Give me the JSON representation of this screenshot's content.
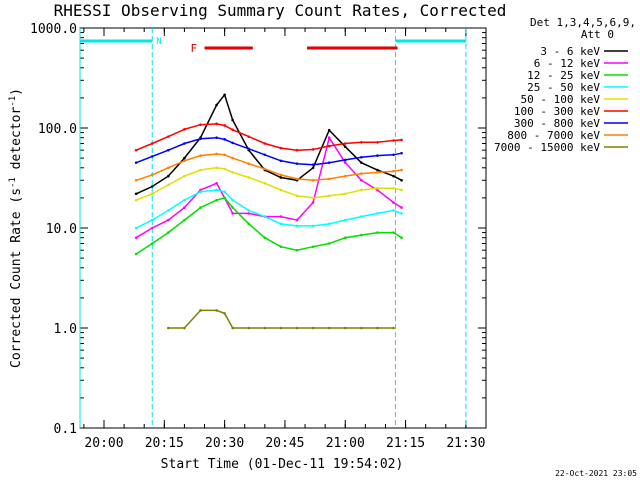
{
  "chart_data": {
    "type": "line",
    "title": "RHESSI Observing Summary Count Rates, Corrected",
    "xlabel": "Start Time (01-Dec-11 19:54:02)",
    "ylabel": "Corrected Count Rate (s",
    "ylabel_sup": "-1",
    "ylabel_tail": " detector",
    "ylabel_sup2": "-1",
    "ylabel_end": ")",
    "y_scale": "log",
    "ylim": [
      0.1,
      1000
    ],
    "y_ticks": [
      {
        "v": 1000,
        "label": "1000.0"
      },
      {
        "v": 100,
        "label": "100.0"
      },
      {
        "v": 10,
        "label": "10.0"
      },
      {
        "v": 1,
        "label": "1.0"
      },
      {
        "v": 0.1,
        "label": "0.1"
      }
    ],
    "xlim": [
      "19:54:02",
      "21:35:00"
    ],
    "x_ticks": [
      "20:00",
      "20:15",
      "20:30",
      "20:45",
      "21:00",
      "21:15",
      "21:30"
    ],
    "detector_info": [
      "Det 1,3,4,5,6,9,",
      "Att 0"
    ],
    "legend_placement": "right",
    "timestamp": "22-Oct-2021 23:05",
    "night_marker_label": "N",
    "flare_marker_label": "F",
    "night_intervals": [
      [
        "19:54:02",
        "20:12:00"
      ],
      [
        "21:12:30",
        "21:30:00"
      ]
    ],
    "flare_intervals": [
      [
        "20:25:00",
        "20:37:00"
      ],
      [
        "20:50:30",
        "21:13:00"
      ]
    ],
    "bar_colors": {
      "night": "#00e5ee",
      "flare": "#e00000"
    },
    "x": [
      "20:08",
      "20:12",
      "20:16",
      "20:20",
      "20:24",
      "20:28",
      "20:30",
      "20:32",
      "20:36",
      "20:40",
      "20:44",
      "20:48",
      "20:52",
      "20:56",
      "21:00",
      "21:04",
      "21:08",
      "21:12",
      "21:14"
    ],
    "series": [
      {
        "name": "3 - 6 keV",
        "color": "#000000",
        "values": [
          22,
          26,
          33,
          50,
          80,
          170,
          215,
          120,
          60,
          38,
          32,
          30,
          40,
          95,
          65,
          45,
          38,
          33,
          30
        ]
      },
      {
        "name": "6 - 12 keV",
        "color": "#ff00ff",
        "values": [
          8,
          10,
          12,
          16,
          24,
          28,
          20,
          14,
          14,
          13,
          13,
          12,
          18,
          80,
          45,
          30,
          24,
          18,
          16
        ]
      },
      {
        "name": "12 - 25 keV",
        "color": "#00e000",
        "values": [
          5.5,
          7,
          9,
          12,
          16,
          19,
          20,
          16,
          11,
          8,
          6.5,
          6,
          6.5,
          7,
          8,
          8.5,
          9,
          9,
          8
        ]
      },
      {
        "name": "25 - 50 keV",
        "color": "#00ffff",
        "values": [
          10,
          12,
          15,
          19,
          23,
          24,
          23,
          19,
          15,
          13,
          11,
          10.5,
          10.5,
          11,
          12,
          13,
          14,
          15,
          14
        ]
      },
      {
        "name": "50 - 100 keV",
        "color": "#e0e000",
        "values": [
          19,
          22,
          27,
          33,
          38,
          40,
          39,
          36,
          32,
          28,
          24,
          21,
          20,
          21,
          22,
          24,
          25,
          25,
          24
        ]
      },
      {
        "name": "100 - 300 keV",
        "color": "#ff0000",
        "values": [
          60,
          70,
          82,
          97,
          108,
          110,
          106,
          96,
          82,
          70,
          63,
          60,
          61,
          66,
          70,
          72,
          72,
          75,
          76
        ]
      },
      {
        "name": "300 - 800 keV",
        "color": "#0000ff",
        "values": [
          45,
          52,
          60,
          70,
          78,
          80,
          77,
          71,
          62,
          54,
          47,
          44,
          43,
          45,
          48,
          51,
          53,
          54,
          56
        ]
      },
      {
        "name": "800 - 7000 keV",
        "color": "#ff8000",
        "values": [
          30,
          34,
          40,
          47,
          53,
          55,
          54,
          50,
          44,
          39,
          34,
          31,
          30,
          31,
          33,
          35,
          36,
          37,
          38
        ]
      },
      {
        "name": "7000 - 15000 keV",
        "color": "#808000",
        "values": [
          null,
          null,
          1,
          1,
          1.5,
          1.5,
          1.4,
          1,
          1,
          1,
          1,
          1,
          1,
          1,
          1,
          1,
          1,
          1,
          null
        ]
      }
    ]
  }
}
